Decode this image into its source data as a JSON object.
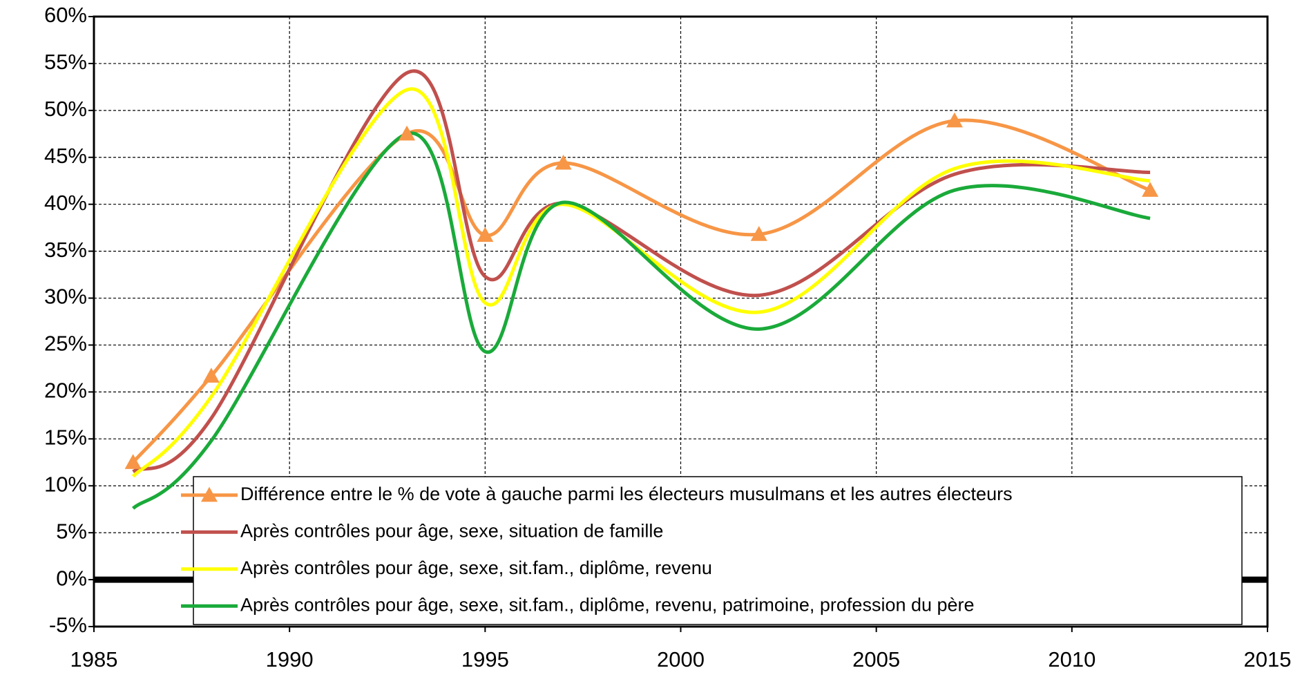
{
  "chart_data": {
    "type": "line",
    "x": [
      1986,
      1988,
      1993,
      1995,
      1997,
      2002,
      2007,
      2012
    ],
    "series": [
      {
        "name": "Différence entre le % de vote à gauche parmi les électeurs musulmans et les autres électeurs",
        "color": "#f79646",
        "marker": "triangle",
        "values": [
          12.5,
          21.7,
          47.5,
          36.7,
          44.4,
          36.8,
          48.9,
          41.5
        ]
      },
      {
        "name": "Après contrôles pour âge, sexe, situation de famille",
        "color": "#c0504d",
        "values": [
          11.5,
          17.2,
          54,
          32.3,
          40.1,
          30.3,
          43.2,
          43.4
        ]
      },
      {
        "name": "Après contrôles pour âge, sexe, sit.fam., diplôme, revenu",
        "color": "#ffff00",
        "values": [
          11,
          19.5,
          52.2,
          29.5,
          40,
          28.5,
          43.8,
          42.5
        ]
      },
      {
        "name": "Après contrôles pour âge, sexe, sit.fam., diplôme, revenu, patrimoine, profession du père",
        "color": "#1aaa3a",
        "values": [
          7.6,
          14.8,
          47.5,
          24.3,
          40.2,
          26.7,
          41.5,
          38.5
        ]
      }
    ],
    "xlim": [
      1985,
      2015
    ],
    "xticks": [
      1985,
      1990,
      1995,
      2000,
      2005,
      2010,
      2015
    ],
    "ylim": [
      -5,
      60
    ],
    "yticks": [
      {
        "value": -5,
        "label": "-5%"
      },
      {
        "value": 0,
        "label": "0%"
      },
      {
        "value": 5,
        "label": "5%"
      },
      {
        "value": 10,
        "label": "10%"
      },
      {
        "value": 15,
        "label": "15%"
      },
      {
        "value": 20,
        "label": "20%"
      },
      {
        "value": 25,
        "label": "25%"
      },
      {
        "value": 30,
        "label": "30%"
      },
      {
        "value": 35,
        "label": "35%"
      },
      {
        "value": 40,
        "label": "40%"
      },
      {
        "value": 45,
        "label": "45%"
      },
      {
        "value": 50,
        "label": "50%"
      },
      {
        "value": 55,
        "label": "55%"
      },
      {
        "value": 60,
        "label": "60%"
      }
    ],
    "grid": true,
    "smooth": true,
    "legend": "bottom-right"
  }
}
